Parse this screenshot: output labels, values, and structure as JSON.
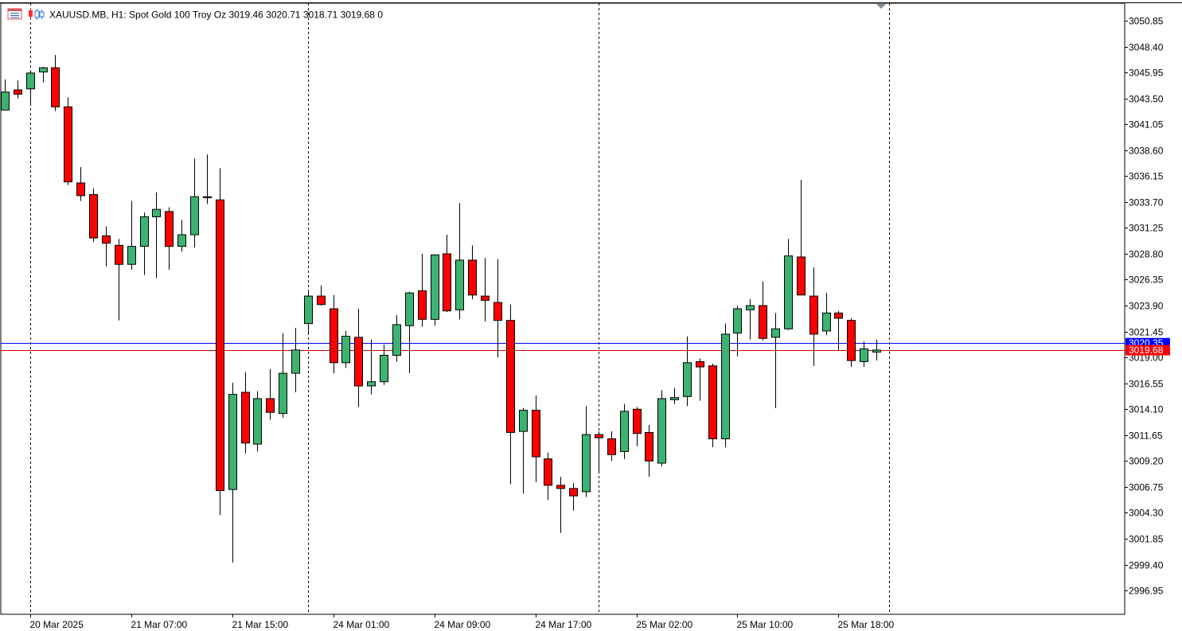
{
  "header": {
    "symbol": "XAUUSD.MB",
    "timeframe": "H1:",
    "description": "Spot Gold 100 Troy Oz",
    "ohlc": "3019.46 3020.71 3018.71 3019.68",
    "volume": "0",
    "icons": [
      "chart-window-icon",
      "candlestick-chart-icon"
    ]
  },
  "colors": {
    "bull": "#3cb371",
    "bear": "#ff0000",
    "wick": "#000000",
    "bid_line": "#0000ff",
    "ask_line": "#cc0000",
    "bid_badge": "#0000ff",
    "ask_badge": "#ff0000",
    "axis": "#000000",
    "separator": "#000000"
  },
  "chart_data": {
    "type": "candlestick",
    "symbol": "XAUUSD.MB",
    "timeframe": "H1",
    "ylim": [
      2995.5,
      3052.2
    ],
    "y_ticks": [
      "3050.85",
      "3048.40",
      "3045.95",
      "3043.50",
      "3041.05",
      "3038.60",
      "3036.15",
      "3033.70",
      "3031.25",
      "3028.80",
      "3026.35",
      "3023.90",
      "3021.45",
      "3019.00",
      "3016.55",
      "3014.10",
      "3011.65",
      "3009.20",
      "3006.75",
      "3004.30",
      "3001.85",
      "2999.40",
      "2996.95"
    ],
    "x_labels": [
      {
        "index": 2,
        "label": "20 Mar 2025"
      },
      {
        "index": 10,
        "label": "21 Mar 07:00"
      },
      {
        "index": 18,
        "label": "21 Mar 15:00"
      },
      {
        "index": 26,
        "label": "24 Mar 01:00"
      },
      {
        "index": 34,
        "label": "24 Mar 09:00"
      },
      {
        "index": 42,
        "label": "24 Mar 17:00"
      },
      {
        "index": 50,
        "label": "25 Mar 02:00"
      },
      {
        "index": 58,
        "label": "25 Mar 10:00"
      },
      {
        "index": 66,
        "label": "25 Mar 18:00"
      }
    ],
    "day_separators": [
      2,
      24,
      47,
      70
    ],
    "bid_line": {
      "value": 3020.35,
      "label": "3020.35"
    },
    "ask_line": {
      "value": 3019.68,
      "label": "3019.68"
    },
    "candles": [
      {
        "o": 3042.4,
        "h": 3045.3,
        "l": 3042.4,
        "c": 3044.1
      },
      {
        "o": 3044.3,
        "h": 3045.2,
        "l": 3043.5,
        "c": 3043.9
      },
      {
        "o": 3044.4,
        "h": 3046.1,
        "l": 3043.0,
        "c": 3045.9
      },
      {
        "o": 3046.0,
        "h": 3046.5,
        "l": 3045.0,
        "c": 3046.4
      },
      {
        "o": 3046.4,
        "h": 3047.6,
        "l": 3042.3,
        "c": 3042.7
      },
      {
        "o": 3042.7,
        "h": 3043.6,
        "l": 3035.3,
        "c": 3035.6
      },
      {
        "o": 3035.5,
        "h": 3037.0,
        "l": 3033.8,
        "c": 3034.3
      },
      {
        "o": 3034.4,
        "h": 3035.0,
        "l": 3029.9,
        "c": 3030.3
      },
      {
        "o": 3030.5,
        "h": 3031.4,
        "l": 3027.6,
        "c": 3029.8
      },
      {
        "o": 3029.6,
        "h": 3030.2,
        "l": 3022.5,
        "c": 3027.8
      },
      {
        "o": 3027.8,
        "h": 3033.8,
        "l": 3027.3,
        "c": 3029.5
      },
      {
        "o": 3029.5,
        "h": 3032.7,
        "l": 3026.8,
        "c": 3032.3
      },
      {
        "o": 3032.3,
        "h": 3034.6,
        "l": 3026.5,
        "c": 3033.0
      },
      {
        "o": 3032.8,
        "h": 3033.2,
        "l": 3027.3,
        "c": 3029.5
      },
      {
        "o": 3029.5,
        "h": 3032.0,
        "l": 3029.0,
        "c": 3030.6
      },
      {
        "o": 3030.6,
        "h": 3037.8,
        "l": 3029.4,
        "c": 3034.2
      },
      {
        "o": 3034.2,
        "h": 3038.2,
        "l": 3033.5,
        "c": 3034.1
      },
      {
        "o": 3033.9,
        "h": 3036.9,
        "l": 3004.1,
        "c": 3006.4
      },
      {
        "o": 3006.5,
        "h": 3016.6,
        "l": 2999.6,
        "c": 3015.5
      },
      {
        "o": 3015.7,
        "h": 3017.6,
        "l": 3009.9,
        "c": 3010.9
      },
      {
        "o": 3010.8,
        "h": 3015.8,
        "l": 3010.1,
        "c": 3015.1
      },
      {
        "o": 3015.1,
        "h": 3017.9,
        "l": 3013.1,
        "c": 3013.8
      },
      {
        "o": 3013.7,
        "h": 3021.3,
        "l": 3013.3,
        "c": 3017.5
      },
      {
        "o": 3017.5,
        "h": 3021.8,
        "l": 3015.7,
        "c": 3019.7
      },
      {
        "o": 3022.2,
        "h": 3025.4,
        "l": 3021.3,
        "c": 3024.8
      },
      {
        "o": 3024.8,
        "h": 3025.8,
        "l": 3023.9,
        "c": 3024.0
      },
      {
        "o": 3023.6,
        "h": 3024.9,
        "l": 3017.5,
        "c": 3018.5
      },
      {
        "o": 3018.5,
        "h": 3021.5,
        "l": 3018.0,
        "c": 3021.0
      },
      {
        "o": 3020.9,
        "h": 3023.6,
        "l": 3014.3,
        "c": 3016.3
      },
      {
        "o": 3016.3,
        "h": 3020.7,
        "l": 3015.5,
        "c": 3016.7
      },
      {
        "o": 3016.7,
        "h": 3020.2,
        "l": 3016.4,
        "c": 3019.2
      },
      {
        "o": 3019.2,
        "h": 3023.0,
        "l": 3018.6,
        "c": 3022.1
      },
      {
        "o": 3022.0,
        "h": 3025.2,
        "l": 3017.5,
        "c": 3025.1
      },
      {
        "o": 3025.3,
        "h": 3028.8,
        "l": 3021.9,
        "c": 3022.6
      },
      {
        "o": 3022.6,
        "h": 3028.7,
        "l": 3022.0,
        "c": 3028.7
      },
      {
        "o": 3028.8,
        "h": 3030.6,
        "l": 3023.3,
        "c": 3023.4
      },
      {
        "o": 3023.5,
        "h": 3033.6,
        "l": 3022.6,
        "c": 3028.2
      },
      {
        "o": 3028.2,
        "h": 3029.6,
        "l": 3024.5,
        "c": 3024.9
      },
      {
        "o": 3024.8,
        "h": 3028.4,
        "l": 3022.4,
        "c": 3024.4
      },
      {
        "o": 3024.2,
        "h": 3028.3,
        "l": 3019.0,
        "c": 3022.5
      },
      {
        "o": 3022.5,
        "h": 3024.0,
        "l": 3007.0,
        "c": 3011.9
      },
      {
        "o": 3012.0,
        "h": 3014.2,
        "l": 3006.1,
        "c": 3014.0
      },
      {
        "o": 3014.0,
        "h": 3015.4,
        "l": 3007.2,
        "c": 3009.6
      },
      {
        "o": 3009.4,
        "h": 3010.0,
        "l": 3005.5,
        "c": 3006.9
      },
      {
        "o": 3006.9,
        "h": 3007.7,
        "l": 3002.4,
        "c": 3006.6
      },
      {
        "o": 3006.6,
        "h": 3007.1,
        "l": 3004.5,
        "c": 3005.9
      },
      {
        "o": 3006.3,
        "h": 3014.4,
        "l": 3005.8,
        "c": 3011.7
      },
      {
        "o": 3011.7,
        "h": 3012.0,
        "l": 3008.0,
        "c": 3011.4
      },
      {
        "o": 3011.3,
        "h": 3012.0,
        "l": 3009.2,
        "c": 3009.8
      },
      {
        "o": 3010.1,
        "h": 3014.6,
        "l": 3009.4,
        "c": 3013.9
      },
      {
        "o": 3014.1,
        "h": 3014.3,
        "l": 3010.6,
        "c": 3011.8
      },
      {
        "o": 3011.9,
        "h": 3012.6,
        "l": 3007.7,
        "c": 3009.2
      },
      {
        "o": 3009.0,
        "h": 3015.9,
        "l": 3008.7,
        "c": 3015.1
      },
      {
        "o": 3015.0,
        "h": 3016.1,
        "l": 3014.6,
        "c": 3015.2
      },
      {
        "o": 3015.3,
        "h": 3021.0,
        "l": 3014.4,
        "c": 3018.5
      },
      {
        "o": 3018.6,
        "h": 3018.9,
        "l": 3014.9,
        "c": 3018.1
      },
      {
        "o": 3018.2,
        "h": 3018.4,
        "l": 3010.5,
        "c": 3011.3
      },
      {
        "o": 3011.3,
        "h": 3022.2,
        "l": 3010.5,
        "c": 3021.2
      },
      {
        "o": 3021.3,
        "h": 3023.9,
        "l": 3019.1,
        "c": 3023.6
      },
      {
        "o": 3023.5,
        "h": 3024.5,
        "l": 3020.7,
        "c": 3023.9
      },
      {
        "o": 3023.9,
        "h": 3026.2,
        "l": 3020.6,
        "c": 3020.8
      },
      {
        "o": 3020.9,
        "h": 3023.2,
        "l": 3014.2,
        "c": 3021.7
      },
      {
        "o": 3021.7,
        "h": 3030.2,
        "l": 3021.6,
        "c": 3028.6
      },
      {
        "o": 3028.5,
        "h": 3035.8,
        "l": 3024.9,
        "c": 3024.9
      },
      {
        "o": 3024.8,
        "h": 3027.5,
        "l": 3018.2,
        "c": 3021.2
      },
      {
        "o": 3021.5,
        "h": 3025.1,
        "l": 3021.1,
        "c": 3023.2
      },
      {
        "o": 3023.2,
        "h": 3023.4,
        "l": 3019.7,
        "c": 3022.7
      },
      {
        "o": 3022.5,
        "h": 3022.7,
        "l": 3018.1,
        "c": 3018.7
      },
      {
        "o": 3018.6,
        "h": 3020.5,
        "l": 3018.1,
        "c": 3019.8
      },
      {
        "o": 3019.5,
        "h": 3020.7,
        "l": 3018.7,
        "c": 3019.7
      }
    ]
  }
}
